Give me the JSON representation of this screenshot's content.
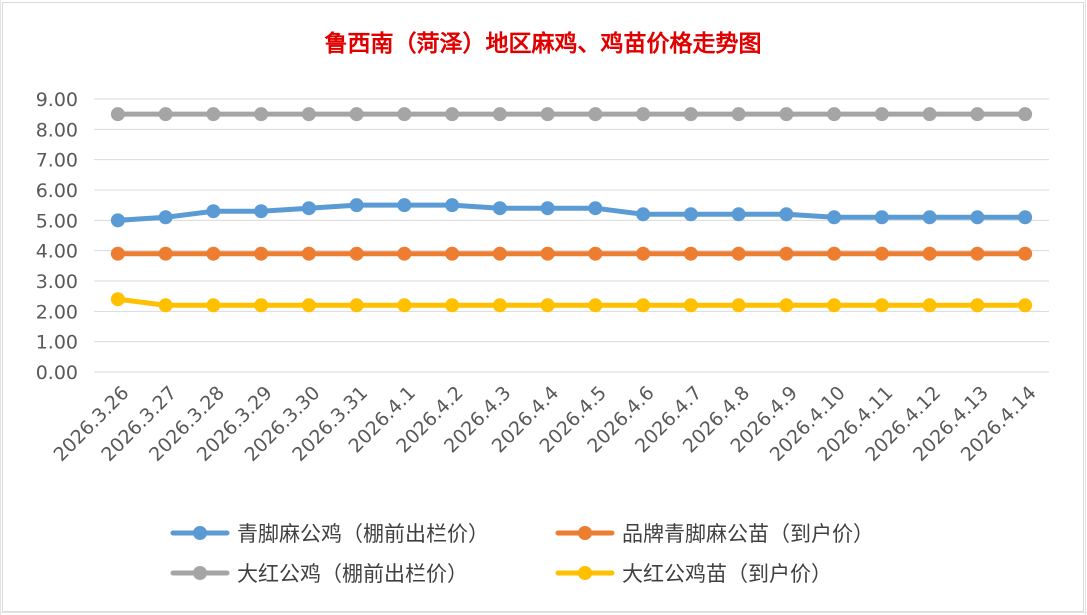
{
  "chart_data": {
    "type": "line",
    "title": "鲁西南（菏泽）地区麻鸡、鸡苗价格走势图",
    "title_color": "#e00000",
    "xlabel": "",
    "ylabel": "",
    "ylim": [
      0,
      9
    ],
    "y_ticks": [
      "0.00",
      "1.00",
      "2.00",
      "3.00",
      "4.00",
      "5.00",
      "6.00",
      "7.00",
      "8.00",
      "9.00"
    ],
    "grid": true,
    "legend_position": "bottom",
    "categories": [
      "2026.3.26",
      "2026.3.27",
      "2026.3.28",
      "2026.3.29",
      "2026.3.30",
      "2026.3.31",
      "2026.4.1",
      "2026.4.2",
      "2026.4.3",
      "2026.4.4",
      "2026.4.5",
      "2026.4.6",
      "2026.4.7",
      "2026.4.8",
      "2026.4.9",
      "2026.4.10",
      "2026.4.11",
      "2026.4.12",
      "2026.4.13",
      "2026.4.14"
    ],
    "series": [
      {
        "name": "青脚麻公鸡（棚前出栏价）",
        "color": "#5b9bd5",
        "values": [
          5.0,
          5.1,
          5.3,
          5.3,
          5.4,
          5.5,
          5.5,
          5.5,
          5.4,
          5.4,
          5.4,
          5.2,
          5.2,
          5.2,
          5.2,
          5.1,
          5.1,
          5.1,
          5.1,
          5.1
        ]
      },
      {
        "name": "品牌青脚麻公苗（到户价）",
        "color": "#ed7d31",
        "values": [
          3.9,
          3.9,
          3.9,
          3.9,
          3.9,
          3.9,
          3.9,
          3.9,
          3.9,
          3.9,
          3.9,
          3.9,
          3.9,
          3.9,
          3.9,
          3.9,
          3.9,
          3.9,
          3.9,
          3.9
        ]
      },
      {
        "name": "大红公鸡（棚前出栏价）",
        "color": "#a5a5a5",
        "values": [
          8.5,
          8.5,
          8.5,
          8.5,
          8.5,
          8.5,
          8.5,
          8.5,
          8.5,
          8.5,
          8.5,
          8.5,
          8.5,
          8.5,
          8.5,
          8.5,
          8.5,
          8.5,
          8.5,
          8.5
        ]
      },
      {
        "name": "大红公鸡苗（到户价）",
        "color": "#ffc000",
        "values": [
          2.4,
          2.2,
          2.2,
          2.2,
          2.2,
          2.2,
          2.2,
          2.2,
          2.2,
          2.2,
          2.2,
          2.2,
          2.2,
          2.2,
          2.2,
          2.2,
          2.2,
          2.2,
          2.2,
          2.2
        ]
      }
    ]
  }
}
